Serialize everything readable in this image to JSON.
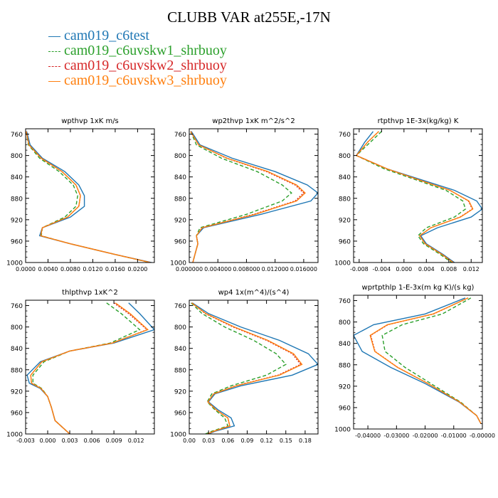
{
  "title": "CLUBB VAR at255E,-17N",
  "legend": [
    {
      "name": "cam019_c6test",
      "color": "#1f77b4",
      "dash": "solid"
    },
    {
      "name": "cam019_c6uvskw1_shrbuoy",
      "color": "#2ca02c",
      "dash": "dashed"
    },
    {
      "name": "cam019_c6uvskw2_shrbuoy",
      "color": "#d62728",
      "dash": "dotted"
    },
    {
      "name": "cam019_c6uvskw3_shrbuoy",
      "color": "#ff7f0e",
      "dash": "solid"
    }
  ],
  "chart_data": [
    {
      "type": "line",
      "title": "wpthvp  1xK m/s",
      "xlim": [
        0.0,
        0.023
      ],
      "ylim": [
        1000,
        750
      ],
      "xticks": [
        0.0,
        0.004,
        0.008,
        0.012,
        0.016,
        0.02
      ],
      "xtick_labels": [
        "0.0000",
        "0.0040",
        "0.0080",
        "0.0120",
        "0.0160",
        "0.0200"
      ],
      "yticks": [
        760,
        800,
        840,
        880,
        920,
        960,
        1000
      ],
      "series": [
        {
          "name": "cam019_c6test",
          "x": [
            0.0002,
            0.0008,
            0.003,
            0.007,
            0.0095,
            0.0105,
            0.0105,
            0.008,
            0.003,
            0.0025,
            0.008,
            0.016,
            0.0225
          ],
          "y": [
            755,
            780,
            805,
            830,
            855,
            875,
            895,
            915,
            935,
            950,
            965,
            985,
            1000
          ]
        },
        {
          "name": "cam019_c6uvskw1_shrbuoy",
          "x": [
            0.0001,
            0.0005,
            0.0025,
            0.006,
            0.0085,
            0.0093,
            0.009,
            0.007,
            0.003,
            0.0028,
            0.008,
            0.016,
            0.0222
          ],
          "y": [
            755,
            780,
            805,
            830,
            855,
            875,
            895,
            915,
            935,
            950,
            965,
            985,
            1000
          ]
        },
        {
          "name": "cam019_c6uvskw2_shrbuoy",
          "x": [
            0.0001,
            0.0006,
            0.0028,
            0.0065,
            0.009,
            0.0098,
            0.0095,
            0.0075,
            0.003,
            0.0027,
            0.008,
            0.016,
            0.0223
          ],
          "y": [
            755,
            780,
            805,
            830,
            855,
            875,
            895,
            915,
            935,
            950,
            965,
            985,
            1000
          ]
        },
        {
          "name": "cam019_c6uvskw3_shrbuoy",
          "x": [
            0.0001,
            0.0006,
            0.0028,
            0.0065,
            0.009,
            0.0098,
            0.0095,
            0.0075,
            0.003,
            0.0027,
            0.008,
            0.016,
            0.0223
          ],
          "y": [
            755,
            780,
            805,
            830,
            855,
            875,
            895,
            915,
            935,
            950,
            965,
            985,
            1000
          ]
        }
      ]
    },
    {
      "type": "line",
      "title": "wp2thvp  1xK m^2/s^2",
      "xlim": [
        0.0,
        0.018
      ],
      "ylim": [
        1000,
        750
      ],
      "xticks": [
        0.0,
        0.004,
        0.008,
        0.012,
        0.016
      ],
      "xtick_labels": [
        "0.000000",
        "0.004000",
        "0.008000",
        "0.012000",
        "0.016000"
      ],
      "yticks": [
        760,
        800,
        840,
        880,
        920,
        960,
        1000
      ],
      "series": [
        {
          "name": "cam019_c6test",
          "x": [
            0.0003,
            0.0015,
            0.006,
            0.012,
            0.0165,
            0.018,
            0.017,
            0.01,
            0.002,
            0.001,
            0.0012,
            0.0008,
            0.0005
          ],
          "y": [
            755,
            780,
            805,
            830,
            855,
            870,
            885,
            910,
            935,
            950,
            965,
            985,
            1000
          ]
        },
        {
          "name": "cam019_c6uvskw1_shrbuoy",
          "x": [
            0.0002,
            0.001,
            0.0045,
            0.0095,
            0.013,
            0.0143,
            0.013,
            0.008,
            0.0015,
            0.001,
            0.0012,
            0.0008,
            0.0005
          ],
          "y": [
            755,
            780,
            805,
            830,
            855,
            870,
            885,
            910,
            935,
            950,
            965,
            985,
            1000
          ]
        },
        {
          "name": "cam019_c6uvskw2_shrbuoy",
          "x": [
            0.0002,
            0.0013,
            0.0052,
            0.0108,
            0.0148,
            0.016,
            0.0148,
            0.009,
            0.0018,
            0.001,
            0.0012,
            0.0008,
            0.0005
          ],
          "y": [
            755,
            780,
            805,
            830,
            855,
            870,
            885,
            910,
            935,
            950,
            965,
            985,
            1000
          ]
        },
        {
          "name": "cam019_c6uvskw3_shrbuoy",
          "x": [
            0.0002,
            0.0013,
            0.0053,
            0.011,
            0.015,
            0.0162,
            0.015,
            0.0092,
            0.0018,
            0.001,
            0.0012,
            0.0008,
            0.0005
          ],
          "y": [
            755,
            780,
            805,
            830,
            855,
            870,
            885,
            910,
            935,
            950,
            965,
            985,
            1000
          ]
        }
      ]
    },
    {
      "type": "line",
      "title": "rtpthvp  1E-3x(kg/kg) K",
      "xlim": [
        -0.009,
        0.014
      ],
      "ylim": [
        1000,
        750
      ],
      "xticks": [
        -0.008,
        -0.004,
        0.0,
        0.004,
        0.008,
        0.012
      ],
      "xtick_labels": [
        "-0.008",
        "-0.004",
        "0.000",
        "0.004",
        "0.008",
        "0.012"
      ],
      "yticks": [
        760,
        800,
        840,
        880,
        920,
        960,
        1000
      ],
      "series": [
        {
          "name": "cam019_c6test",
          "x": [
            -0.0055,
            -0.007,
            -0.0085,
            -0.003,
            0.003,
            0.009,
            0.013,
            0.014,
            0.012,
            0.006,
            0.003,
            0.004,
            0.007,
            0.009
          ],
          "y": [
            755,
            775,
            800,
            825,
            845,
            865,
            885,
            900,
            915,
            935,
            950,
            965,
            985,
            1000
          ]
        },
        {
          "name": "cam019_c6uvskw1_shrbuoy",
          "x": [
            -0.004,
            -0.006,
            -0.0085,
            -0.0035,
            0.002,
            0.0075,
            0.0105,
            0.011,
            0.009,
            0.004,
            0.0025,
            0.0035,
            0.0065,
            0.0085
          ],
          "y": [
            755,
            775,
            800,
            825,
            845,
            865,
            885,
            900,
            915,
            935,
            950,
            965,
            985,
            1000
          ]
        },
        {
          "name": "cam019_c6uvskw2_shrbuoy",
          "x": [
            -0.0045,
            -0.0065,
            -0.0085,
            -0.003,
            0.0025,
            0.0082,
            0.0115,
            0.0122,
            0.01,
            0.0048,
            0.0028,
            0.0038,
            0.0068,
            0.0088
          ],
          "y": [
            755,
            775,
            800,
            825,
            845,
            865,
            885,
            900,
            915,
            935,
            950,
            965,
            985,
            1000
          ]
        },
        {
          "name": "cam019_c6uvskw3_shrbuoy",
          "x": [
            -0.0045,
            -0.0065,
            -0.0085,
            -0.003,
            0.0025,
            0.0082,
            0.0116,
            0.0123,
            0.0101,
            0.0048,
            0.0028,
            0.0038,
            0.0068,
            0.0088
          ],
          "y": [
            755,
            775,
            800,
            825,
            845,
            865,
            885,
            900,
            915,
            935,
            950,
            965,
            985,
            1000
          ]
        }
      ]
    },
    {
      "type": "line",
      "title": "thlpthvp  1xK^2",
      "xlim": [
        -0.003,
        0.0145
      ],
      "ylim": [
        1000,
        750
      ],
      "xticks": [
        -0.003,
        0.0,
        0.003,
        0.006,
        0.009,
        0.012
      ],
      "xtick_labels": [
        "-0.003",
        "0.000",
        "0.003",
        "0.006",
        "0.009",
        "0.012"
      ],
      "yticks": [
        760,
        800,
        840,
        880,
        920,
        960,
        1000
      ],
      "series": [
        {
          "name": "cam019_c6test",
          "x": [
            0.011,
            0.0125,
            0.0145,
            0.009,
            0.003,
            -0.001,
            -0.0028,
            -0.0025,
            -0.001,
            0.0,
            0.0005,
            0.001,
            0.003
          ],
          "y": [
            755,
            775,
            805,
            830,
            845,
            865,
            890,
            905,
            915,
            930,
            950,
            975,
            1000
          ]
        },
        {
          "name": "cam019_c6uvskw1_shrbuoy",
          "x": [
            0.008,
            0.01,
            0.0125,
            0.0085,
            0.003,
            -0.0005,
            -0.002,
            -0.002,
            -0.0008,
            0.0,
            0.0005,
            0.001,
            0.003
          ],
          "y": [
            755,
            775,
            805,
            830,
            845,
            865,
            890,
            905,
            915,
            930,
            950,
            975,
            1000
          ]
        },
        {
          "name": "cam019_c6uvskw2_shrbuoy",
          "x": [
            0.009,
            0.011,
            0.0135,
            0.0088,
            0.003,
            -0.0008,
            -0.0023,
            -0.0022,
            -0.0009,
            0.0,
            0.0005,
            0.001,
            0.003
          ],
          "y": [
            755,
            775,
            805,
            830,
            845,
            865,
            890,
            905,
            915,
            930,
            950,
            975,
            1000
          ]
        },
        {
          "name": "cam019_c6uvskw3_shrbuoy",
          "x": [
            0.0092,
            0.0112,
            0.0136,
            0.0088,
            0.003,
            -0.0008,
            -0.0023,
            -0.0022,
            -0.0009,
            0.0,
            0.0005,
            0.001,
            0.003
          ],
          "y": [
            755,
            775,
            805,
            830,
            845,
            865,
            890,
            905,
            915,
            930,
            950,
            975,
            1000
          ]
        }
      ]
    },
    {
      "type": "line",
      "title": "wp4  1x(m^4)/(s^4)",
      "xlim": [
        0.0,
        0.2
      ],
      "ylim": [
        1000,
        750
      ],
      "xticks": [
        0.0,
        0.03,
        0.06,
        0.09,
        0.12,
        0.15,
        0.18
      ],
      "xtick_labels": [
        "0.00",
        "0.03",
        "0.06",
        "0.09",
        "0.12",
        "0.15",
        "0.18"
      ],
      "yticks": [
        760,
        800,
        840,
        880,
        920,
        960,
        1000
      ],
      "series": [
        {
          "name": "cam019_c6test",
          "x": [
            0.005,
            0.03,
            0.08,
            0.14,
            0.185,
            0.2,
            0.16,
            0.08,
            0.04,
            0.03,
            0.045,
            0.065,
            0.07,
            0.04,
            0.03
          ],
          "y": [
            755,
            775,
            800,
            825,
            850,
            870,
            890,
            910,
            925,
            940,
            955,
            970,
            985,
            995,
            1000
          ]
        },
        {
          "name": "cam019_c6uvskw1_shrbuoy",
          "x": [
            0.003,
            0.02,
            0.055,
            0.1,
            0.135,
            0.15,
            0.12,
            0.065,
            0.035,
            0.028,
            0.04,
            0.055,
            0.06,
            0.035,
            0.025
          ],
          "y": [
            755,
            775,
            800,
            825,
            850,
            870,
            890,
            910,
            925,
            940,
            955,
            970,
            985,
            995,
            1000
          ]
        },
        {
          "name": "cam019_c6uvskw2_shrbuoy",
          "x": [
            0.004,
            0.025,
            0.068,
            0.12,
            0.16,
            0.173,
            0.138,
            0.072,
            0.038,
            0.029,
            0.042,
            0.06,
            0.063,
            0.038,
            0.028
          ],
          "y": [
            755,
            775,
            800,
            825,
            850,
            870,
            890,
            910,
            925,
            940,
            955,
            970,
            985,
            995,
            1000
          ]
        },
        {
          "name": "cam019_c6uvskw3_shrbuoy",
          "x": [
            0.004,
            0.026,
            0.07,
            0.122,
            0.162,
            0.175,
            0.14,
            0.073,
            0.038,
            0.029,
            0.042,
            0.06,
            0.063,
            0.038,
            0.028
          ],
          "y": [
            755,
            775,
            800,
            825,
            850,
            870,
            890,
            910,
            925,
            940,
            955,
            970,
            985,
            995,
            1000
          ]
        }
      ]
    },
    {
      "type": "line",
      "title": "wprtpthlp  1-E-3x(m kg K)/(s kg)",
      "xlim": [
        -0.045,
        0.0
      ],
      "ylim": [
        1000,
        750
      ],
      "xticks": [
        -0.04,
        -0.03,
        -0.02,
        -0.01,
        0.0
      ],
      "xtick_labels": [
        "-0.04000",
        "-0.03000",
        "-0.02000",
        "-0.01000",
        "-0.00000"
      ],
      "yticks": [
        760,
        800,
        840,
        880,
        920,
        960,
        1000
      ],
      "series": [
        {
          "name": "cam019_c6test",
          "x": [
            -0.006,
            -0.02,
            -0.038,
            -0.045,
            -0.042,
            -0.032,
            -0.02,
            -0.008,
            -0.002,
            -0.0005
          ],
          "y": [
            755,
            785,
            805,
            825,
            855,
            885,
            915,
            950,
            975,
            990
          ]
        },
        {
          "name": "cam019_c6uvskw1_shrbuoy",
          "x": [
            -0.004,
            -0.014,
            -0.028,
            -0.035,
            -0.034,
            -0.027,
            -0.018,
            -0.0075,
            -0.002,
            -0.0005
          ],
          "y": [
            755,
            785,
            805,
            825,
            855,
            885,
            915,
            950,
            975,
            990
          ]
        },
        {
          "name": "cam019_c6uvskw2_shrbuoy",
          "x": [
            -0.005,
            -0.017,
            -0.033,
            -0.039,
            -0.0375,
            -0.0295,
            -0.019,
            -0.0078,
            -0.002,
            -0.0005
          ],
          "y": [
            755,
            785,
            805,
            825,
            855,
            885,
            915,
            950,
            975,
            990
          ]
        },
        {
          "name": "cam019_c6uvskw3_shrbuoy",
          "x": [
            -0.005,
            -0.0172,
            -0.0332,
            -0.0392,
            -0.0376,
            -0.0296,
            -0.019,
            -0.0078,
            -0.002,
            -0.0005
          ],
          "y": [
            755,
            785,
            805,
            825,
            855,
            885,
            915,
            950,
            975,
            990
          ]
        }
      ]
    }
  ]
}
